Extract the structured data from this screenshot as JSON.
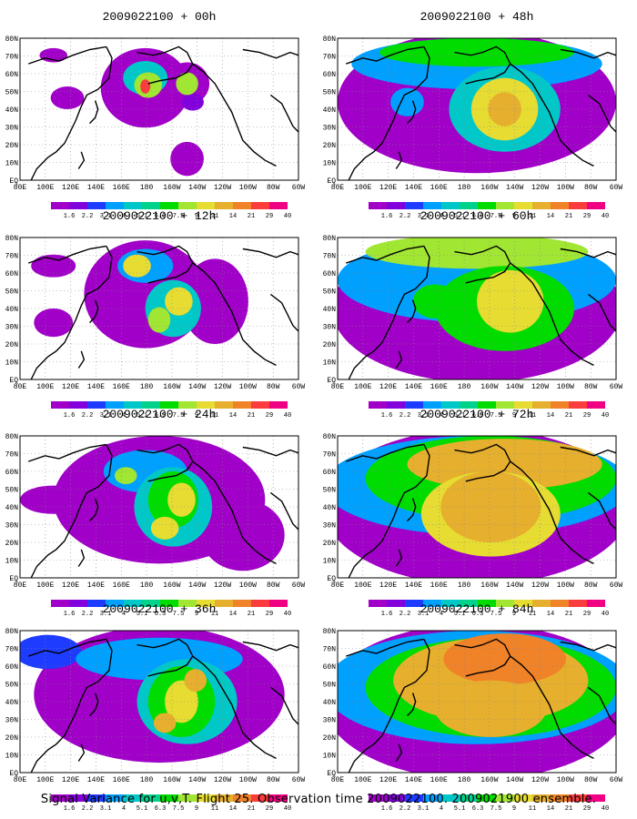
{
  "caption": "Signal Variance for u,v,T. Flight 25. Observation time 2009022100. 2009021900 ensemble.",
  "lat_labels": [
    "80N",
    "70N",
    "60N",
    "50N",
    "40N",
    "30N",
    "20N",
    "10N",
    "EQ"
  ],
  "lon_labels": [
    "80E",
    "100E",
    "120E",
    "140E",
    "160E",
    "180",
    "160W",
    "140W",
    "120W",
    "100W",
    "80W",
    "60W"
  ],
  "colorbar": {
    "labels": [
      "1.6",
      "2.2",
      "3.1",
      "4",
      "5.1",
      "6.3",
      "7.5",
      "9",
      "11",
      "14",
      "21",
      "29",
      "40"
    ],
    "colors": [
      "#a000c8",
      "#8200dc",
      "#1e3cff",
      "#00a0ff",
      "#00c8c8",
      "#00d28c",
      "#00dc00",
      "#a0e632",
      "#e6dc32",
      "#e6af2d",
      "#f08228",
      "#fa3c3c",
      "#f00082"
    ]
  },
  "panels": [
    {
      "title": "2009022100 + 00h",
      "level": 0
    },
    {
      "title": "2009022100 + 48h",
      "level": 4
    },
    {
      "title": "2009022100 + 12h",
      "level": 1
    },
    {
      "title": "2009022100 + 60h",
      "level": 5
    },
    {
      "title": "2009022100 + 24h",
      "level": 2
    },
    {
      "title": "2009022100 + 72h",
      "level": 6
    },
    {
      "title": "2009022100 + 36h",
      "level": 3
    },
    {
      "title": "2009022100 + 84h",
      "level": 7
    }
  ]
}
